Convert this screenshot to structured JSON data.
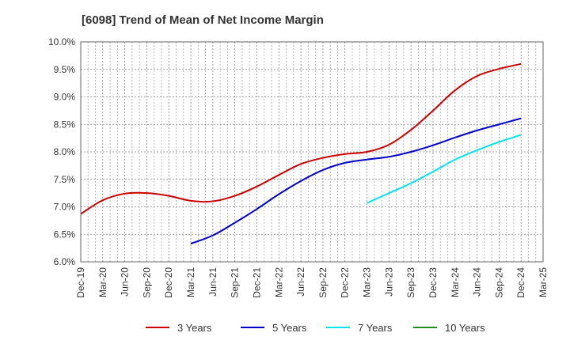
{
  "chart_data": {
    "type": "line",
    "title": "[6098]  Trend of Mean of Net Income Margin",
    "xlabel": "",
    "ylabel": "",
    "x": [
      "Dec-19",
      "Mar-20",
      "Jun-20",
      "Sep-20",
      "Dec-20",
      "Mar-21",
      "Jun-21",
      "Sep-21",
      "Dec-21",
      "Mar-22",
      "Jun-22",
      "Sep-22",
      "Dec-22",
      "Mar-23",
      "Jun-23",
      "Sep-23",
      "Dec-23",
      "Mar-24",
      "Jun-24",
      "Sep-24",
      "Dec-24",
      "Mar-25"
    ],
    "ylim": [
      6.0,
      10.0
    ],
    "yticks": [
      "6.0%",
      "6.5%",
      "7.0%",
      "7.5%",
      "8.0%",
      "8.5%",
      "9.0%",
      "9.5%",
      "10.0%"
    ],
    "grid": true,
    "legend_position": "bottom",
    "series": [
      {
        "name": "3 Years",
        "color": "#cc0000",
        "values": [
          6.87,
          7.12,
          7.24,
          7.25,
          7.2,
          7.11,
          7.1,
          7.2,
          7.37,
          7.58,
          7.78,
          7.89,
          7.96,
          8.0,
          8.13,
          8.4,
          8.75,
          9.12,
          9.38,
          9.51,
          9.6,
          null
        ]
      },
      {
        "name": "5 Years",
        "color": "#0000cc",
        "values": [
          null,
          null,
          null,
          null,
          null,
          6.33,
          6.48,
          6.71,
          6.96,
          7.23,
          7.47,
          7.67,
          7.8,
          7.86,
          7.91,
          8.0,
          8.12,
          8.26,
          8.39,
          8.5,
          8.61,
          null
        ]
      },
      {
        "name": "7 Years",
        "color": "#00e5ee",
        "values": [
          null,
          null,
          null,
          null,
          null,
          null,
          null,
          null,
          null,
          null,
          null,
          null,
          null,
          7.07,
          7.25,
          7.43,
          7.64,
          7.86,
          8.03,
          8.18,
          8.31,
          null
        ]
      },
      {
        "name": "10 Years",
        "color": "#228b22",
        "values": [
          null,
          null,
          null,
          null,
          null,
          null,
          null,
          null,
          null,
          null,
          null,
          null,
          null,
          null,
          null,
          null,
          null,
          null,
          null,
          null,
          null,
          null
        ]
      }
    ]
  }
}
